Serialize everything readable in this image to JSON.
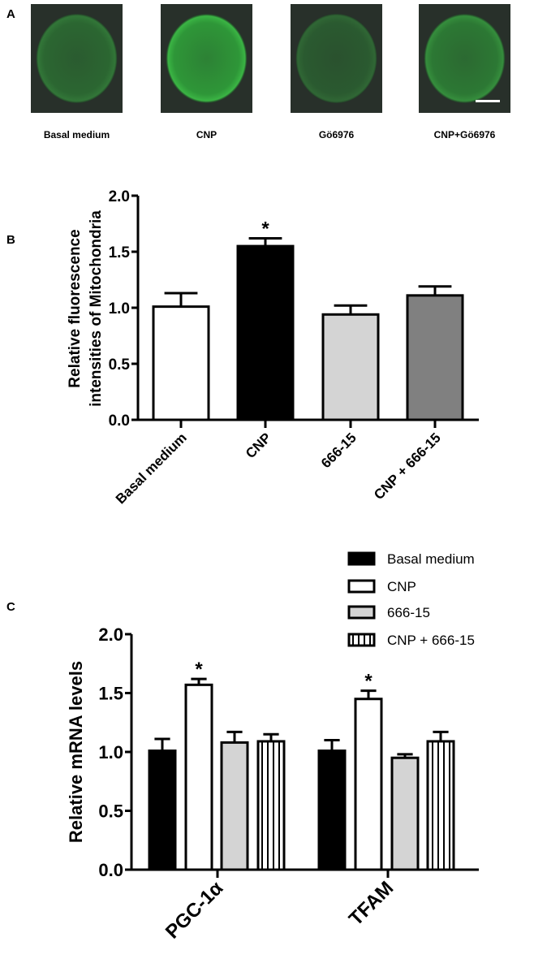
{
  "panel_labels": {
    "a": "A",
    "b": "B",
    "c": "C"
  },
  "panel_a": {
    "images": [
      {
        "label": "Basal medium",
        "brightness": 0.45
      },
      {
        "label": "CNP",
        "brightness": 0.85
      },
      {
        "label": "Gö6976",
        "brightness": 0.35
      },
      {
        "label": "CNP+Gö6976",
        "brightness": 0.6
      }
    ],
    "fluorescence_color": "#2fa83a",
    "scale_bar": true
  },
  "chart_data": [
    {
      "type": "bar",
      "panel": "B",
      "ylabel": "Relative fluorescence intensities of Mitochondria",
      "ylabel_lines": [
        "Relative fluorescence",
        "intensities of Mitochondria"
      ],
      "ylim": [
        0,
        2.0
      ],
      "yticks": [
        "0.0",
        "0.5",
        "1.0",
        "1.5",
        "2.0"
      ],
      "categories": [
        "Basal medium",
        "CNP",
        "666-15",
        "CNP + 666-15"
      ],
      "values": [
        1.01,
        1.55,
        0.94,
        1.11
      ],
      "errors": [
        0.12,
        0.07,
        0.08,
        0.08
      ],
      "colors": [
        "#ffffff",
        "#000000",
        "#d4d4d4",
        "#808080"
      ],
      "significance": [
        "",
        "*",
        "",
        ""
      ],
      "grid": false
    },
    {
      "type": "bar",
      "panel": "C",
      "ylabel": "Relative mRNA levels",
      "ylim": [
        0,
        2.0
      ],
      "yticks": [
        "0.0",
        "0.5",
        "1.0",
        "1.5",
        "2.0"
      ],
      "categories": [
        "PGC-1α",
        "TFAM"
      ],
      "legend_position": "top-right",
      "series": [
        {
          "name": "Basal medium",
          "fill": "#000000",
          "pattern": "solid",
          "values": [
            1.01,
            1.01
          ],
          "errors": [
            0.1,
            0.09
          ],
          "significance": [
            "",
            ""
          ]
        },
        {
          "name": "CNP",
          "fill": "#ffffff",
          "pattern": "solid",
          "values": [
            1.57,
            1.45
          ],
          "errors": [
            0.05,
            0.07
          ],
          "significance": [
            "*",
            "*"
          ]
        },
        {
          "name": "666-15",
          "fill": "#d4d4d4",
          "pattern": "solid",
          "values": [
            1.08,
            0.95
          ],
          "errors": [
            0.09,
            0.03
          ],
          "significance": [
            "",
            ""
          ]
        },
        {
          "name": "CNP + 666-15",
          "fill": "#ffffff",
          "pattern": "vertical-stripes",
          "values": [
            1.09,
            1.09
          ],
          "errors": [
            0.06,
            0.08
          ],
          "significance": [
            "",
            ""
          ]
        }
      ],
      "grid": false
    }
  ]
}
